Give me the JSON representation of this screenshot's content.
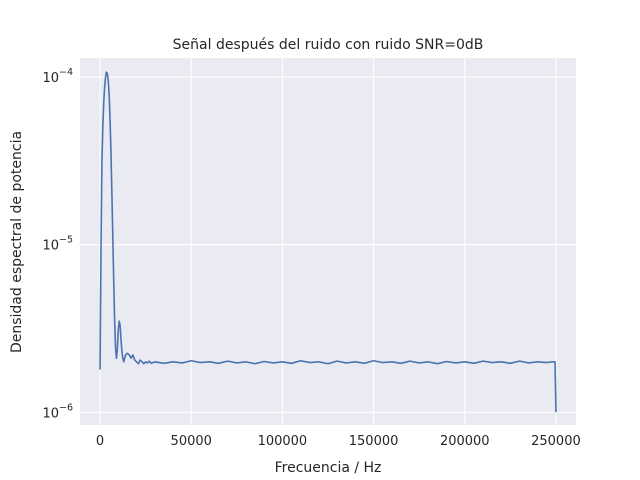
{
  "chart_data": {
    "type": "line",
    "title": "Señal después del ruido con ruido SNR=0dB",
    "xlabel": "Frecuencia / Hz",
    "ylabel": "Densidad espectral de potencia",
    "yscale": "log",
    "xlim": [
      -11000,
      261000
    ],
    "ylim": [
      8.4e-07,
      0.00013
    ],
    "grid": true,
    "x_ticks": [
      {
        "value": 0,
        "label": "0"
      },
      {
        "value": 50000,
        "label": "50000"
      },
      {
        "value": 100000,
        "label": "100000"
      },
      {
        "value": 150000,
        "label": "150000"
      },
      {
        "value": 200000,
        "label": "200000"
      },
      {
        "value": 250000,
        "label": "250000"
      }
    ],
    "y_ticks": [
      {
        "value": 1e-06,
        "base": "10",
        "exp": "−6"
      },
      {
        "value": 1e-05,
        "base": "10",
        "exp": "−5"
      },
      {
        "value": 0.0001,
        "base": "10",
        "exp": "−4"
      }
    ],
    "series": [
      {
        "color": "#4c72b0",
        "x": [
          0,
          500,
          1000,
          1500,
          2000,
          2500,
          3000,
          3500,
          4000,
          4500,
          5000,
          5500,
          6000,
          6500,
          7000,
          7500,
          8000,
          8500,
          9000,
          9500,
          10000,
          10500,
          11000,
          11500,
          12000,
          12500,
          13000,
          13500,
          14000,
          15000,
          16000,
          17000,
          18000,
          19000,
          20000,
          21000,
          22000,
          23000,
          24000,
          25000,
          26000,
          27000,
          28000,
          30000,
          35000,
          40000,
          45000,
          50000,
          55000,
          60000,
          65000,
          70000,
          75000,
          80000,
          85000,
          90000,
          95000,
          100000,
          105000,
          110000,
          115000,
          120000,
          125000,
          130000,
          135000,
          140000,
          145000,
          150000,
          155000,
          160000,
          165000,
          170000,
          175000,
          180000,
          185000,
          190000,
          195000,
          200000,
          205000,
          210000,
          215000,
          220000,
          225000,
          230000,
          235000,
          240000,
          245000,
          248000,
          249500,
          250000
        ],
        "y": [
          1.8e-06,
          9e-06,
          3e-05,
          5e-05,
          7e-05,
          8.7e-05,
          0.0001,
          0.000107,
          0.000105,
          9.5e-05,
          7.8e-05,
          5.5e-05,
          3.5e-05,
          2e-05,
          1.1e-05,
          6e-06,
          3.5e-06,
          2.4e-06,
          2.1e-06,
          2.4e-06,
          3.1e-06,
          3.5e-06,
          3.3e-06,
          2.7e-06,
          2.3e-06,
          2.1e-06,
          2e-06,
          2.1e-06,
          2.2e-06,
          2.25e-06,
          2.2e-06,
          2.1e-06,
          2.2e-06,
          2.05e-06,
          2e-06,
          1.95e-06,
          2.05e-06,
          2e-06,
          1.95e-06,
          2e-06,
          1.97e-06,
          2.02e-06,
          1.96e-06,
          2e-06,
          1.96e-06,
          2e-06,
          1.97e-06,
          2.03e-06,
          1.98e-06,
          2e-06,
          1.96e-06,
          2.02e-06,
          1.97e-06,
          2e-06,
          1.95e-06,
          2.01e-06,
          1.97e-06,
          2e-06,
          1.96e-06,
          2.03e-06,
          1.98e-06,
          2e-06,
          1.95e-06,
          2.02e-06,
          1.97e-06,
          2e-06,
          1.96e-06,
          2.03e-06,
          1.98e-06,
          2e-06,
          1.96e-06,
          2.02e-06,
          1.97e-06,
          2e-06,
          1.95e-06,
          2.01e-06,
          1.97e-06,
          2e-06,
          1.96e-06,
          2.02e-06,
          1.98e-06,
          2e-06,
          1.96e-06,
          2.02e-06,
          1.97e-06,
          2e-06,
          1.98e-06,
          2e-06,
          2e-06,
          1e-06
        ]
      }
    ]
  }
}
